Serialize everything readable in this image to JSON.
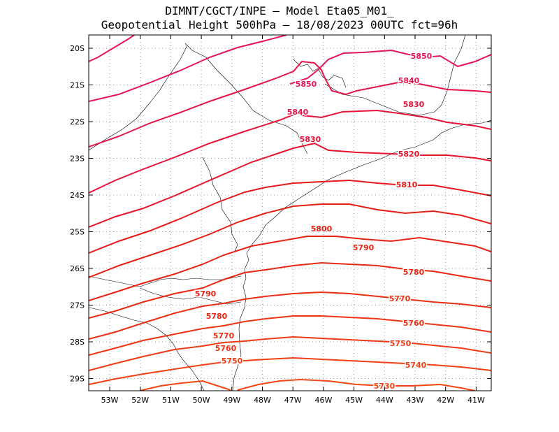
{
  "header": {
    "line1": "DIMNT/CGCT/INPE –  Model Eta05_M01_",
    "line2": "Geopotential Height 500hPa –  18/08/2023 00UTC fct=96h"
  },
  "axes": {
    "x_ticks": [
      "53W",
      "52W",
      "51W",
      "50W",
      "49W",
      "48W",
      "47W",
      "46W",
      "45W",
      "44W",
      "43W",
      "42W",
      "41W"
    ],
    "y_ticks": [
      "20S",
      "21S",
      "22S",
      "23S",
      "24S",
      "25S",
      "26S",
      "27S",
      "28S",
      "29S"
    ]
  },
  "contours": [
    {
      "value": 5850,
      "label": "5850",
      "color": "#e6145a"
    },
    {
      "value": 5840,
      "label": "5840",
      "color": "#e6144a"
    },
    {
      "value": 5830,
      "label": "5830",
      "color": "#e6143a"
    },
    {
      "value": 5820,
      "label": "5820",
      "color": "#e6142a"
    },
    {
      "value": 5810,
      "label": "5810",
      "color": "#e61a1a"
    },
    {
      "value": 5800,
      "label": "5800",
      "color": "#e61e14"
    },
    {
      "value": 5790,
      "label": "5790",
      "color": "#e82214"
    },
    {
      "value": 5780,
      "label": "5780",
      "color": "#ea2814"
    },
    {
      "value": 5770,
      "label": "5770",
      "color": "#ec2e14"
    },
    {
      "value": 5760,
      "label": "5760",
      "color": "#ee3414"
    },
    {
      "value": 5750,
      "label": "5750",
      "color": "#f03a14"
    },
    {
      "value": 5740,
      "label": "5740",
      "color": "#f24014"
    },
    {
      "value": 5730,
      "label": "5730",
      "color": "#f44614"
    }
  ]
}
